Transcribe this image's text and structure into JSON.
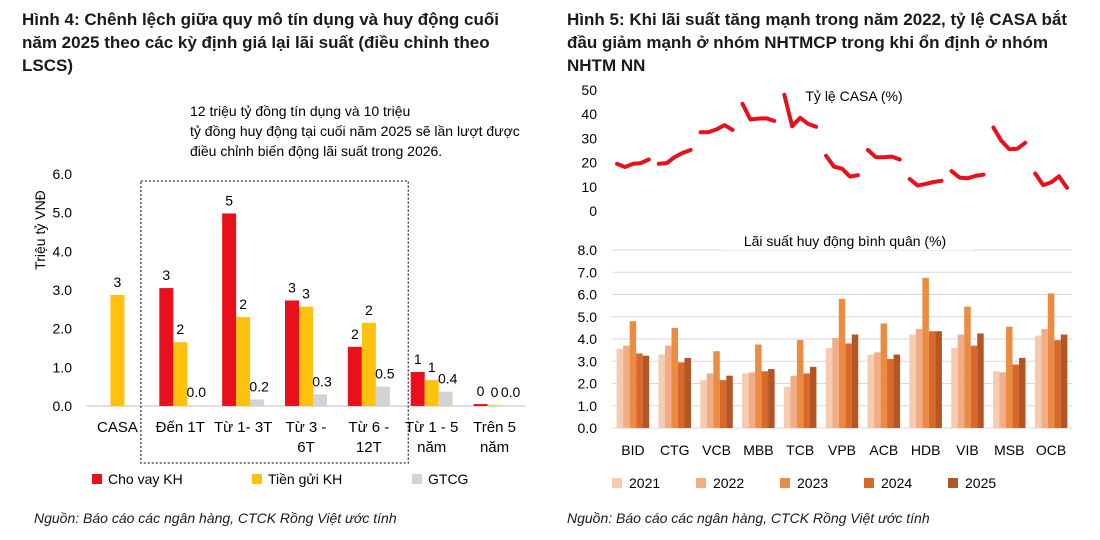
{
  "figure4": {
    "title": "Hình 4: Chênh lệch giữa quy mô tín dụng và huy động cuối năm 2025 theo các kỳ định giá lại lãi suất (điều chỉnh theo LSCS)",
    "annotation": "12 triệu tỷ đồng tín dụng và 10 triệu tỷ đồng huy động tại cuối năm 2025 sẽ lần lượt được điều chỉnh biến động lãi suất trong 2026.",
    "source": "Nguồn: Báo cáo các ngân hàng, CTCK Rồng Việt ước tính"
  },
  "figure5": {
    "title": "Hình 5: Khi lãi suất tăng mạnh trong năm 2022, tỷ lệ CASA bắt đầu giảm mạnh ở nhóm NHTMCP trong khi ổn định ở nhóm NHTM NN",
    "source": "Nguồn: Báo cáo các ngân hàng, CTCK Rồng Việt ước tính"
  },
  "chart_data": [
    {
      "type": "bar",
      "ylabel": "Triệu tỷ VNĐ",
      "ylim": [
        0,
        6
      ],
      "yticks": [
        "0.0",
        "1.0",
        "2.0",
        "3.0",
        "4.0",
        "5.0",
        "6.0"
      ],
      "categories": [
        [
          "CASA"
        ],
        [
          "Đến 1T"
        ],
        [
          "Từ 1- 3T"
        ],
        [
          "Từ 3 -",
          "6T"
        ],
        [
          "Từ 6 -",
          "12T"
        ],
        [
          "Từ 1 - 5",
          "năm"
        ],
        [
          "Trên 5",
          "năm"
        ]
      ],
      "series": [
        {
          "name": "Cho vay KH",
          "color": "#e8101a",
          "values": [
            null,
            3.05,
            4.98,
            2.73,
            1.53,
            0.88,
            0.05
          ],
          "labels": [
            "",
            "3",
            "5",
            "3",
            "2",
            "1",
            "0"
          ]
        },
        {
          "name": "Tiền gửi KH",
          "color": "#fec20e",
          "values": [
            2.87,
            1.65,
            2.3,
            2.57,
            2.15,
            0.67,
            0.02
          ],
          "labels": [
            "3",
            "2",
            "2",
            "3",
            "2",
            "1",
            "0"
          ]
        },
        {
          "name": "GTCG",
          "color": "#d3d3d5",
          "values": [
            null,
            0.02,
            0.17,
            0.3,
            0.5,
            0.37,
            0.02
          ],
          "labels": [
            "",
            "0.0",
            "0.2",
            "0.3",
            "0.5",
            "0.4",
            "0.0"
          ]
        }
      ],
      "highlight_box": "Đến 1T – Từ 6 - 12T",
      "legend": "bottom"
    },
    {
      "type": "line",
      "title": "Tỷ lệ CASA (%)",
      "ylim": [
        0,
        50
      ],
      "yticks": [
        "0",
        "10",
        "20",
        "30",
        "40",
        "50"
      ],
      "color": "#e8101a",
      "groups": [
        {
          "bank": "BID",
          "values": [
            19.5,
            18.2,
            19.5,
            19.8,
            21.3
          ]
        },
        {
          "bank": "CTG",
          "values": [
            19.5,
            19.8,
            22.3,
            24.0,
            25.2
          ]
        },
        {
          "bank": "VCB",
          "values": [
            32.5,
            32.6,
            33.7,
            35.5,
            33.5
          ]
        },
        {
          "bank": "MBB",
          "values": [
            44.3,
            37.8,
            38.2,
            38.3,
            37.2
          ]
        },
        {
          "bank": "TCB",
          "values": [
            48.0,
            35.0,
            38.5,
            36.0,
            34.8
          ]
        },
        {
          "bank": "VPB",
          "values": [
            22.8,
            18.3,
            17.5,
            14.2,
            14.8
          ]
        },
        {
          "bank": "ACB",
          "values": [
            25.2,
            22.2,
            22.2,
            22.5,
            21.3
          ]
        },
        {
          "bank": "HDB",
          "values": [
            13.2,
            10.5,
            11.2,
            12.0,
            12.5
          ]
        },
        {
          "bank": "VIB",
          "values": [
            16.5,
            13.8,
            13.5,
            14.5,
            15.0
          ]
        },
        {
          "bank": "MSB",
          "values": [
            34.5,
            29.0,
            25.5,
            25.7,
            28.2
          ]
        },
        {
          "bank": "OCB",
          "values": [
            15.5,
            10.7,
            11.8,
            14.3,
            9.6
          ]
        }
      ]
    },
    {
      "type": "bar",
      "title": "Lãi suất huy động bình quân (%)",
      "ylim": [
        0,
        8
      ],
      "yticks": [
        "0.0",
        "1.0",
        "2.0",
        "3.0",
        "4.0",
        "5.0",
        "6.0",
        "7.0",
        "8.0"
      ],
      "categories": [
        "BID",
        "CTG",
        "VCB",
        "MBB",
        "TCB",
        "VPB",
        "ACB",
        "HDB",
        "VIB",
        "MSB",
        "OCB"
      ],
      "series": [
        {
          "name": "2021",
          "color": "#f6cbb0",
          "values": [
            3.55,
            3.3,
            2.15,
            2.45,
            1.85,
            3.6,
            3.3,
            4.2,
            3.6,
            2.55,
            4.15
          ]
        },
        {
          "name": "2022",
          "color": "#f1ad87",
          "values": [
            3.7,
            3.7,
            2.45,
            2.5,
            2.35,
            4.05,
            3.4,
            4.45,
            4.2,
            2.5,
            4.45
          ]
        },
        {
          "name": "2023",
          "color": "#ec8c42",
          "values": [
            4.8,
            4.5,
            3.45,
            3.75,
            3.95,
            5.8,
            4.7,
            6.75,
            5.45,
            4.55,
            6.05
          ]
        },
        {
          "name": "2024",
          "color": "#d8692a",
          "values": [
            3.35,
            2.95,
            2.15,
            2.55,
            2.45,
            3.8,
            3.1,
            4.35,
            3.7,
            2.85,
            3.95
          ]
        },
        {
          "name": "2025",
          "color": "#b35524",
          "values": [
            3.25,
            3.15,
            2.35,
            2.65,
            2.75,
            4.2,
            3.3,
            4.35,
            4.25,
            3.15,
            4.2
          ]
        }
      ],
      "legend": "bottom"
    }
  ]
}
